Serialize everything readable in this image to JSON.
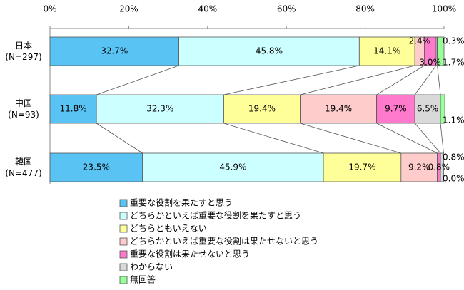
{
  "chart_data": {
    "type": "stacked-bar-horizontal",
    "categories": [
      "日本\n(N=297)",
      "中国\n(N=93)",
      "韓国\n(N=477)"
    ],
    "series": [
      {
        "name": "重要な役割を果たすと思う",
        "color": "#59c3f3",
        "values": [
          32.7,
          11.8,
          23.5
        ],
        "value_labels": [
          "32.7%",
          "11.8%",
          "23.5%"
        ]
      },
      {
        "name": "どちらかといえば重要な役割を果たすと思う",
        "color": "#ccffff",
        "values": [
          45.8,
          32.3,
          45.9
        ],
        "value_labels": [
          "45.8%",
          "32.3%",
          "45.9%"
        ]
      },
      {
        "name": "どちらともいえない",
        "color": "#ffff99",
        "values": [
          14.1,
          19.4,
          19.7
        ],
        "value_labels": [
          "14.1%",
          "19.4%",
          "19.7%"
        ]
      },
      {
        "name": "どちらかといえば重要な役割は果たせないと思う",
        "color": "#ffcccc",
        "values": [
          2.4,
          19.4,
          9.2
        ],
        "value_labels": [
          "2.4%",
          "19.4%",
          "9.2%"
        ]
      },
      {
        "name": "重要な役割は果たせないと思う",
        "color": "#ff79cc",
        "values": [
          3.0,
          9.7,
          0.8
        ],
        "value_labels": [
          "3.0%",
          "9.7%",
          "0.8%"
        ]
      },
      {
        "name": "わからない",
        "color": "#d9d9d9",
        "values": [
          0.3,
          6.5,
          0.8
        ],
        "value_labels": [
          "0.3%",
          "6.5%",
          "0.8%"
        ]
      },
      {
        "name": "無回答",
        "color": "#99ff99",
        "values": [
          1.7,
          1.1,
          0.0
        ],
        "value_labels": [
          "1.7%",
          "1.1%",
          "0.0%"
        ]
      }
    ],
    "xlim": [
      0,
      100
    ],
    "xticks": [
      {
        "value": 0,
        "label": "0%"
      },
      {
        "value": 20,
        "label": "20%"
      },
      {
        "value": 40,
        "label": "40%"
      },
      {
        "value": 60,
        "label": "60%"
      },
      {
        "value": 80,
        "label": "80%"
      },
      {
        "value": 100,
        "label": "100%"
      }
    ],
    "legend": "bottom"
  }
}
